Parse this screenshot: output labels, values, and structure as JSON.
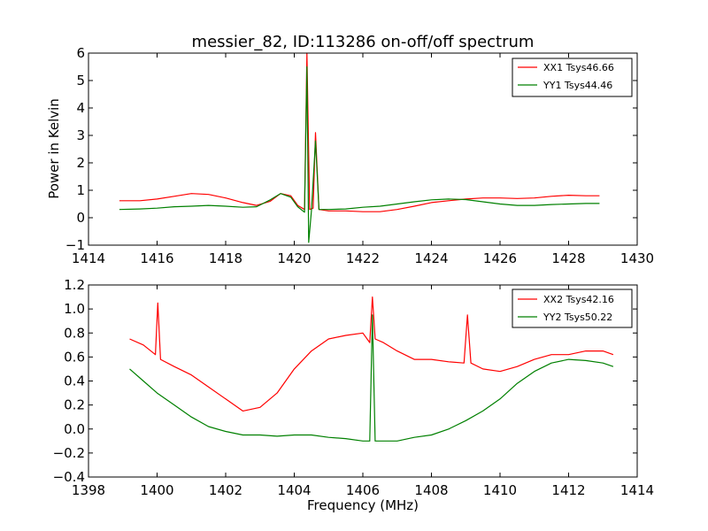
{
  "chart_data": [
    {
      "type": "line",
      "title": "messier_82, ID:113286 on-off/off spectrum",
      "xlabel": "",
      "ylabel": "Power in Kelvin",
      "xlim": [
        1414,
        1430
      ],
      "ylim": [
        -1,
        6
      ],
      "xticks": [
        1414,
        1416,
        1418,
        1420,
        1422,
        1424,
        1426,
        1428,
        1430
      ],
      "yticks": [
        -1,
        0,
        1,
        2,
        3,
        4,
        5,
        6
      ],
      "xtick_labels": [
        "1414",
        "1416",
        "1418",
        "1420",
        "1422",
        "1424",
        "1426",
        "1428",
        "1430"
      ],
      "ytick_labels": [
        "−1",
        "0",
        "1",
        "2",
        "3",
        "4",
        "5",
        "6"
      ],
      "legend_position": "top-right",
      "series": [
        {
          "name": "XX1 Tsys46.66",
          "color": "#ff0000",
          "x": [
            1414.9,
            1415.5,
            1416.0,
            1416.5,
            1417.0,
            1417.5,
            1418.0,
            1418.5,
            1418.9,
            1419.3,
            1419.6,
            1419.9,
            1420.1,
            1420.3,
            1420.37,
            1420.45,
            1420.55,
            1420.62,
            1420.72,
            1421.0,
            1421.5,
            1422.0,
            1422.5,
            1423.0,
            1423.5,
            1424.0,
            1424.5,
            1425.0,
            1425.5,
            1426.0,
            1426.5,
            1427.0,
            1427.5,
            1428.0,
            1428.5,
            1428.9
          ],
          "y": [
            0.62,
            0.62,
            0.68,
            0.78,
            0.88,
            0.85,
            0.72,
            0.55,
            0.45,
            0.6,
            0.88,
            0.8,
            0.45,
            0.3,
            6.0,
            0.3,
            0.35,
            3.1,
            0.3,
            0.25,
            0.25,
            0.22,
            0.22,
            0.3,
            0.42,
            0.55,
            0.62,
            0.68,
            0.72,
            0.72,
            0.7,
            0.72,
            0.78,
            0.82,
            0.8,
            0.8
          ]
        },
        {
          "name": "YY1 Tsys44.46",
          "color": "#008000",
          "x": [
            1414.9,
            1415.5,
            1416.0,
            1416.5,
            1417.0,
            1417.5,
            1418.0,
            1418.5,
            1418.9,
            1419.3,
            1419.6,
            1419.9,
            1420.1,
            1420.3,
            1420.37,
            1420.42,
            1420.5,
            1420.62,
            1420.72,
            1421.0,
            1421.5,
            1422.0,
            1422.5,
            1423.0,
            1423.5,
            1424.0,
            1424.5,
            1425.0,
            1425.5,
            1426.0,
            1426.5,
            1427.0,
            1427.5,
            1428.0,
            1428.5,
            1428.9
          ],
          "y": [
            0.3,
            0.32,
            0.35,
            0.4,
            0.42,
            0.45,
            0.42,
            0.38,
            0.4,
            0.65,
            0.88,
            0.75,
            0.4,
            0.2,
            5.5,
            -0.9,
            0.25,
            2.8,
            0.3,
            0.3,
            0.32,
            0.38,
            0.42,
            0.5,
            0.58,
            0.65,
            0.68,
            0.66,
            0.58,
            0.5,
            0.45,
            0.45,
            0.48,
            0.5,
            0.52,
            0.52
          ]
        }
      ]
    },
    {
      "type": "line",
      "title": "",
      "xlabel": "Frequency (MHz)",
      "ylabel": "",
      "xlim": [
        1398,
        1414
      ],
      "ylim": [
        -0.4,
        1.2
      ],
      "xticks": [
        1398,
        1400,
        1402,
        1404,
        1406,
        1408,
        1410,
        1412,
        1414
      ],
      "yticks": [
        -0.4,
        -0.2,
        0.0,
        0.2,
        0.4,
        0.6,
        0.8,
        1.0,
        1.2
      ],
      "xtick_labels": [
        "1398",
        "1400",
        "1402",
        "1404",
        "1406",
        "1408",
        "1410",
        "1412",
        "1414"
      ],
      "ytick_labels": [
        "−0.4",
        "−0.2",
        "0.0",
        "0.2",
        "0.4",
        "0.6",
        "0.8",
        "1.0",
        "1.2"
      ],
      "legend_position": "top-right",
      "series": [
        {
          "name": "XX2 Tsys42.16",
          "color": "#ff0000",
          "x": [
            1399.2,
            1399.6,
            1399.95,
            1400.02,
            1400.1,
            1400.5,
            1401.0,
            1401.5,
            1402.0,
            1402.5,
            1403.0,
            1403.5,
            1404.0,
            1404.5,
            1405.0,
            1405.5,
            1406.0,
            1406.2,
            1406.28,
            1406.36,
            1406.6,
            1407.0,
            1407.5,
            1408.0,
            1408.5,
            1408.95,
            1409.05,
            1409.15,
            1409.5,
            1410.0,
            1410.5,
            1411.0,
            1411.5,
            1412.0,
            1412.5,
            1413.0,
            1413.3
          ],
          "y": [
            0.75,
            0.7,
            0.62,
            1.05,
            0.58,
            0.52,
            0.45,
            0.35,
            0.25,
            0.15,
            0.18,
            0.3,
            0.5,
            0.65,
            0.75,
            0.78,
            0.8,
            0.72,
            1.1,
            0.75,
            0.72,
            0.65,
            0.58,
            0.58,
            0.56,
            0.55,
            0.95,
            0.55,
            0.5,
            0.48,
            0.52,
            0.58,
            0.62,
            0.62,
            0.65,
            0.65,
            0.62
          ]
        },
        {
          "name": "YY2 Tsys50.22",
          "color": "#008000",
          "x": [
            1399.2,
            1399.6,
            1400.0,
            1400.5,
            1401.0,
            1401.5,
            1402.0,
            1402.5,
            1403.0,
            1403.5,
            1404.0,
            1404.5,
            1405.0,
            1405.5,
            1406.0,
            1406.2,
            1406.28,
            1406.36,
            1406.6,
            1407.0,
            1407.5,
            1408.0,
            1408.5,
            1409.0,
            1409.5,
            1410.0,
            1410.5,
            1411.0,
            1411.5,
            1412.0,
            1412.5,
            1413.0,
            1413.3
          ],
          "y": [
            0.5,
            0.4,
            0.3,
            0.2,
            0.1,
            0.02,
            -0.02,
            -0.05,
            -0.05,
            -0.06,
            -0.05,
            -0.05,
            -0.07,
            -0.08,
            -0.1,
            -0.1,
            0.95,
            -0.1,
            -0.1,
            -0.1,
            -0.07,
            -0.05,
            0.0,
            0.07,
            0.15,
            0.25,
            0.38,
            0.48,
            0.55,
            0.58,
            0.57,
            0.55,
            0.52
          ]
        }
      ]
    }
  ]
}
